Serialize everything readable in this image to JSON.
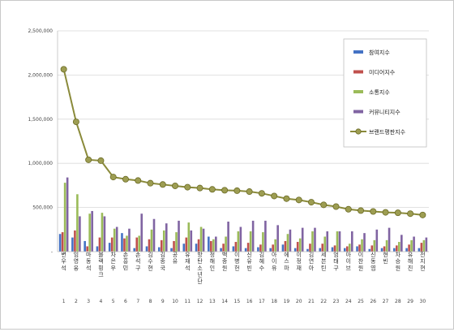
{
  "chart_data": {
    "type": "bar",
    "title": "",
    "xlabel": "",
    "ylabel": "",
    "ylim": [
      0,
      2500000
    ],
    "yticks": [
      0,
      500000,
      1000000,
      1500000,
      2000000,
      2500000
    ],
    "ytick_labels": [
      "-",
      "500,000",
      "1,000,000",
      "1,500,000",
      "2,000,000",
      "2,500,000"
    ],
    "grid": true,
    "legend_position": "top-right",
    "categories": [
      "변우석",
      "임영웅",
      "마동석",
      "블랙핑크",
      "차은우",
      "손흥민",
      "손석구",
      "김수현",
      "김종국",
      "공유",
      "유재석",
      "방탄소년단",
      "정해인",
      "백종원",
      "이병헌",
      "신유빈",
      "김혜수",
      "아이유",
      "에스파",
      "이정재",
      "김연아",
      "세븐틴",
      "엄태구",
      "아이브",
      "이찬원",
      "신동엽",
      "현빈",
      "차승원",
      "유해진",
      "전지현"
    ],
    "ranks": [
      "1",
      "2",
      "3",
      "4",
      "5",
      "6",
      "7",
      "8",
      "9",
      "10",
      "11",
      "12",
      "13",
      "14",
      "15",
      "16",
      "17",
      "18",
      "19",
      "20",
      "21",
      "22",
      "23",
      "24",
      "25",
      "26",
      "27",
      "28",
      "29",
      "30"
    ],
    "series": [
      {
        "name": "참여지수",
        "type": "bar",
        "color": "#4472c4",
        "values": [
          200000,
          160000,
          120000,
          60000,
          100000,
          210000,
          40000,
          60000,
          50000,
          40000,
          90000,
          90000,
          170000,
          40000,
          60000,
          40000,
          50000,
          40000,
          80000,
          40000,
          30000,
          40000,
          50000,
          40000,
          60000,
          30000,
          40000,
          40000,
          40000,
          40000
        ]
      },
      {
        "name": "미디어지수",
        "type": "bar",
        "color": "#c0504d",
        "values": [
          220000,
          240000,
          60000,
          160000,
          160000,
          150000,
          160000,
          140000,
          130000,
          120000,
          160000,
          140000,
          120000,
          90000,
          110000,
          100000,
          80000,
          80000,
          120000,
          110000,
          90000,
          90000,
          70000,
          60000,
          80000,
          70000,
          60000,
          70000,
          80000,
          100000
        ]
      },
      {
        "name": "소통지수",
        "type": "bar",
        "color": "#9bbb59",
        "values": [
          780000,
          650000,
          430000,
          440000,
          260000,
          180000,
          180000,
          250000,
          240000,
          220000,
          330000,
          280000,
          140000,
          170000,
          230000,
          230000,
          220000,
          140000,
          200000,
          150000,
          230000,
          170000,
          230000,
          90000,
          140000,
          130000,
          130000,
          110000,
          130000,
          130000
        ]
      },
      {
        "name": "커뮤니티지수",
        "type": "bar",
        "color": "#8064a2",
        "values": [
          840000,
          400000,
          460000,
          400000,
          280000,
          260000,
          430000,
          370000,
          320000,
          350000,
          240000,
          260000,
          170000,
          340000,
          280000,
          350000,
          350000,
          300000,
          250000,
          270000,
          270000,
          230000,
          230000,
          230000,
          210000,
          250000,
          270000,
          190000,
          170000,
          160000
        ]
      },
      {
        "name": "브랜드평판지수",
        "type": "line",
        "color": "#8a8a3a",
        "values": [
          2065000,
          1470000,
          1040000,
          1030000,
          845000,
          820000,
          805000,
          775000,
          760000,
          745000,
          730000,
          720000,
          705000,
          695000,
          690000,
          680000,
          660000,
          630000,
          600000,
          585000,
          560000,
          530000,
          510000,
          480000,
          465000,
          455000,
          445000,
          440000,
          430000,
          415000
        ]
      }
    ]
  }
}
